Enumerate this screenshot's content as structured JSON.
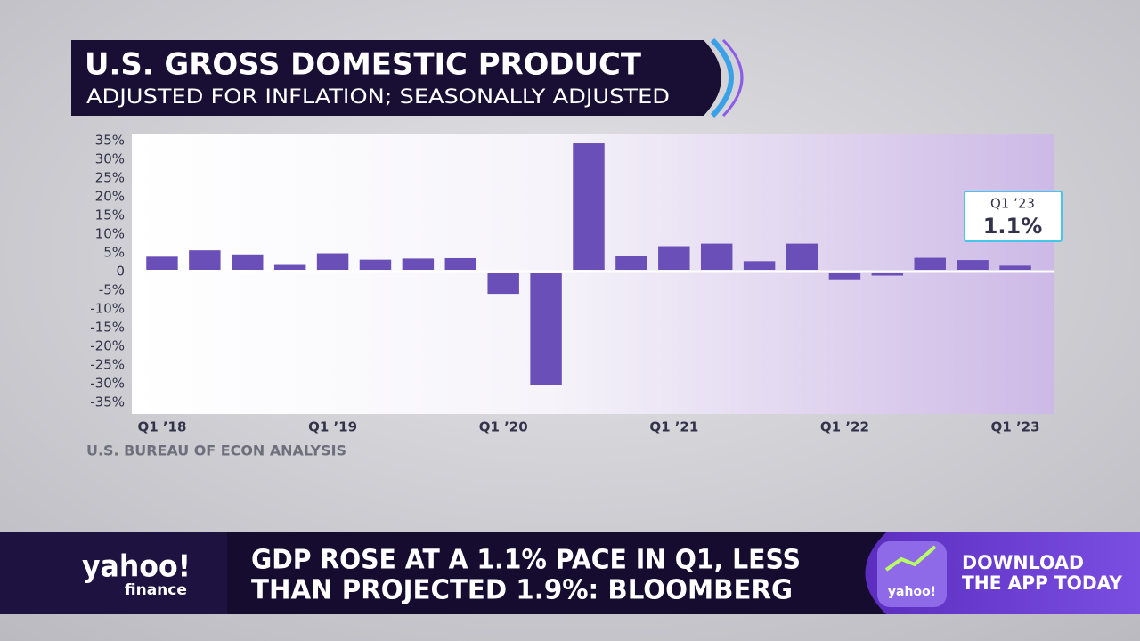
{
  "header": {
    "title": "U.S. GROSS DOMESTIC PRODUCT",
    "subtitle": "ADJUSTED FOR INFLATION; SEASONALLY ADJUSTED"
  },
  "chart_data": {
    "type": "bar",
    "categories": [
      "Q1 ’18",
      null,
      null,
      null,
      "Q1 ’19",
      null,
      null,
      null,
      "Q1 ’20",
      null,
      null,
      null,
      "Q1 ’21",
      null,
      null,
      null,
      "Q1 ’22",
      null,
      null,
      null,
      "Q1 ’23"
    ],
    "values": [
      3.5,
      5.2,
      4.1,
      1.3,
      4.4,
      2.7,
      3.0,
      3.1,
      -5.5,
      -29.9,
      33.8,
      3.8,
      6.3,
      7.0,
      2.3,
      7.0,
      -1.6,
      -0.6,
      3.2,
      2.6,
      1.1
    ],
    "value_labels": [
      null,
      null,
      null,
      null,
      null,
      null,
      null,
      null,
      null,
      null,
      null,
      null,
      null,
      null,
      null,
      null,
      null,
      null,
      null,
      null,
      "1.1%"
    ],
    "color": "#6a4fb8",
    "ylim": [
      -35,
      35
    ],
    "yticks": [
      {
        "value": -35,
        "label": "-35%"
      },
      {
        "value": -30,
        "label": "-30%"
      },
      {
        "value": -25,
        "label": "-25%"
      },
      {
        "value": -20,
        "label": "-20%"
      },
      {
        "value": -15,
        "label": "-15%"
      },
      {
        "value": -10,
        "label": "-10%"
      },
      {
        "value": -5,
        "label": "-5%"
      },
      0,
      {
        "value": 5,
        "label": "5%"
      },
      {
        "value": 10,
        "label": "10%"
      },
      {
        "value": 15,
        "label": "15%"
      },
      {
        "value": 20,
        "label": "20%"
      },
      {
        "value": 25,
        "label": "25%"
      },
      {
        "value": 30,
        "label": "30%"
      },
      {
        "value": 35,
        "label": "35%"
      }
    ],
    "grid": false,
    "source": "U.S. BUREAU OF ECON ANALYSIS"
  },
  "ticker": {
    "lines": [
      "GDP ROSE AT A 1.1% PACE IN Q1, LESS",
      "THAN PROJECTED 1.9%: BLOOMBERG"
    ]
  },
  "logo": {
    "brand": "yahoo!",
    "product": "finance"
  },
  "promo": {
    "brand": "yahoo!",
    "lines": [
      "DOWNLOAD",
      "THE APP TODAY"
    ]
  }
}
